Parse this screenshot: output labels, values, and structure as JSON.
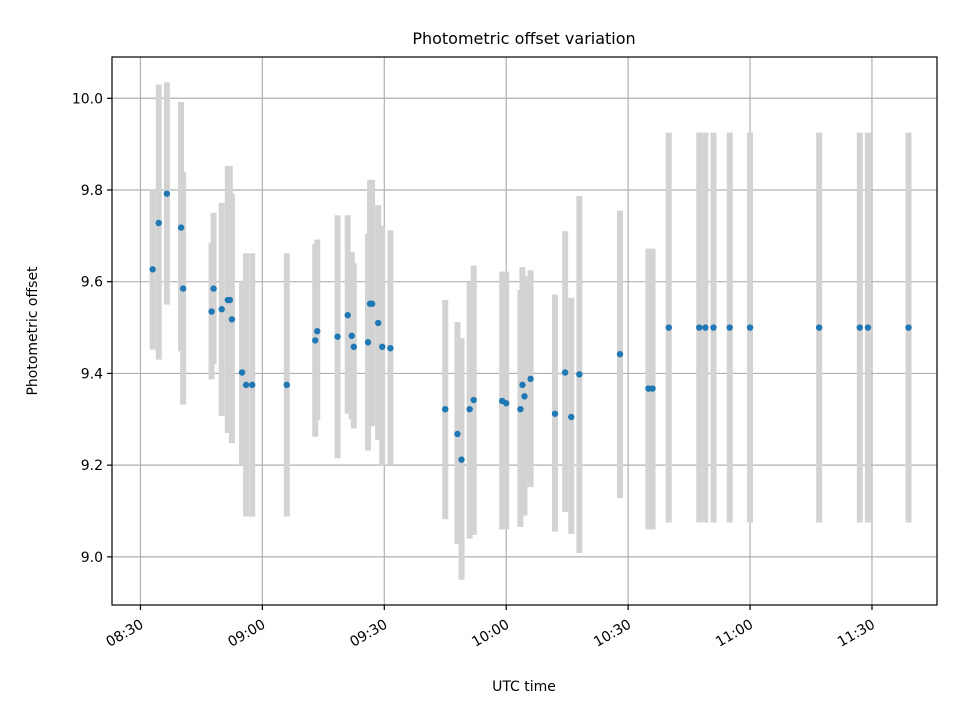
{
  "chart_data": {
    "type": "scatter",
    "title": "Photometric offset variation",
    "xlabel": "UTC time",
    "ylabel": "Photometric offset",
    "xlim": [
      "08:23",
      "11:46"
    ],
    "ylim": [
      8.895,
      10.09
    ],
    "x_ticks": [
      "08:30",
      "09:00",
      "09:30",
      "10:00",
      "10:30",
      "11:00",
      "11:30"
    ],
    "y_ticks": [
      "9.0",
      "9.2",
      "9.4",
      "9.6",
      "9.8",
      "10.0"
    ],
    "grid": true,
    "point_color": "#1f77b4",
    "errorbar_color": "#d3d3d3",
    "points": [
      {
        "x": "08:33",
        "y": 9.627,
        "lo": 9.452,
        "hi": 9.802
      },
      {
        "x": "08:34:30",
        "y": 9.728,
        "lo": 9.43,
        "hi": 10.03
      },
      {
        "x": "08:36:30",
        "y": 9.792,
        "lo": 9.55,
        "hi": 10.035
      },
      {
        "x": "08:40",
        "y": 9.718,
        "lo": 9.448,
        "hi": 9.992
      },
      {
        "x": "08:40:30",
        "y": 9.585,
        "lo": 9.332,
        "hi": 9.84
      },
      {
        "x": "08:47:30",
        "y": 9.535,
        "lo": 9.387,
        "hi": 9.685
      },
      {
        "x": "08:48",
        "y": 9.585,
        "lo": 9.42,
        "hi": 9.75
      },
      {
        "x": "08:50",
        "y": 9.54,
        "lo": 9.307,
        "hi": 9.772
      },
      {
        "x": "08:51:30",
        "y": 9.56,
        "lo": 9.27,
        "hi": 9.852
      },
      {
        "x": "08:52",
        "y": 9.56,
        "lo": 9.27,
        "hi": 9.852
      },
      {
        "x": "08:52:30",
        "y": 9.518,
        "lo": 9.248,
        "hi": 9.792
      },
      {
        "x": "08:55",
        "y": 9.402,
        "lo": 9.2,
        "hi": 9.602
      },
      {
        "x": "08:56",
        "y": 9.375,
        "lo": 9.088,
        "hi": 9.662
      },
      {
        "x": "08:57:30",
        "y": 9.375,
        "lo": 9.088,
        "hi": 9.662
      },
      {
        "x": "09:06",
        "y": 9.375,
        "lo": 9.088,
        "hi": 9.662
      },
      {
        "x": "09:13",
        "y": 9.472,
        "lo": 9.262,
        "hi": 9.682
      },
      {
        "x": "09:13:30",
        "y": 9.492,
        "lo": 9.298,
        "hi": 9.692
      },
      {
        "x": "09:18:30",
        "y": 9.48,
        "lo": 9.215,
        "hi": 9.745
      },
      {
        "x": "09:21",
        "y": 9.527,
        "lo": 9.312,
        "hi": 9.745
      },
      {
        "x": "09:22",
        "y": 9.482,
        "lo": 9.3,
        "hi": 9.665
      },
      {
        "x": "09:22:30",
        "y": 9.458,
        "lo": 9.28,
        "hi": 9.64
      },
      {
        "x": "09:26",
        "y": 9.468,
        "lo": 9.232,
        "hi": 9.705
      },
      {
        "x": "09:26:30",
        "y": 9.552,
        "lo": 9.285,
        "hi": 9.822
      },
      {
        "x": "09:27",
        "y": 9.552,
        "lo": 9.285,
        "hi": 9.822
      },
      {
        "x": "09:28:30",
        "y": 9.51,
        "lo": 9.255,
        "hi": 9.767
      },
      {
        "x": "09:29:30",
        "y": 9.458,
        "lo": 9.198,
        "hi": 9.722
      },
      {
        "x": "09:31:30",
        "y": 9.455,
        "lo": 9.2,
        "hi": 9.712
      },
      {
        "x": "09:45",
        "y": 9.322,
        "lo": 9.082,
        "hi": 9.56
      },
      {
        "x": "09:48",
        "y": 9.268,
        "lo": 9.028,
        "hi": 9.512
      },
      {
        "x": "09:49",
        "y": 9.212,
        "lo": 8.95,
        "hi": 9.477
      },
      {
        "x": "09:51",
        "y": 9.322,
        "lo": 9.04,
        "hi": 9.6
      },
      {
        "x": "09:52",
        "y": 9.342,
        "lo": 9.048,
        "hi": 9.635
      },
      {
        "x": "09:59",
        "y": 9.34,
        "lo": 9.06,
        "hi": 9.622
      },
      {
        "x": "10:00",
        "y": 9.335,
        "lo": 9.06,
        "hi": 9.622
      },
      {
        "x": "10:03:30",
        "y": 9.322,
        "lo": 9.065,
        "hi": 9.582
      },
      {
        "x": "10:04",
        "y": 9.375,
        "lo": 9.12,
        "hi": 9.632
      },
      {
        "x": "10:04:30",
        "y": 9.35,
        "lo": 9.09,
        "hi": 9.612
      },
      {
        "x": "10:06",
        "y": 9.388,
        "lo": 9.152,
        "hi": 9.625
      },
      {
        "x": "10:12",
        "y": 9.312,
        "lo": 9.055,
        "hi": 9.572
      },
      {
        "x": "10:14:30",
        "y": 9.402,
        "lo": 9.098,
        "hi": 9.71
      },
      {
        "x": "10:16",
        "y": 9.305,
        "lo": 9.05,
        "hi": 9.565
      },
      {
        "x": "10:18",
        "y": 9.398,
        "lo": 9.008,
        "hi": 9.787
      },
      {
        "x": "10:28",
        "y": 9.442,
        "lo": 9.128,
        "hi": 9.755
      },
      {
        "x": "10:35",
        "y": 9.367,
        "lo": 9.06,
        "hi": 9.672
      },
      {
        "x": "10:36",
        "y": 9.367,
        "lo": 9.06,
        "hi": 9.672
      },
      {
        "x": "10:40",
        "y": 9.5,
        "lo": 9.075,
        "hi": 9.925
      },
      {
        "x": "10:47:30",
        "y": 9.5,
        "lo": 9.075,
        "hi": 9.925
      },
      {
        "x": "10:49",
        "y": 9.5,
        "lo": 9.075,
        "hi": 9.925
      },
      {
        "x": "10:51",
        "y": 9.5,
        "lo": 9.075,
        "hi": 9.925
      },
      {
        "x": "10:55",
        "y": 9.5,
        "lo": 9.075,
        "hi": 9.925
      },
      {
        "x": "11:00",
        "y": 9.5,
        "lo": 9.075,
        "hi": 9.925
      },
      {
        "x": "11:17",
        "y": 9.5,
        "lo": 9.075,
        "hi": 9.925
      },
      {
        "x": "11:27",
        "y": 9.5,
        "lo": 9.075,
        "hi": 9.925
      },
      {
        "x": "11:29",
        "y": 9.5,
        "lo": 9.075,
        "hi": 9.925
      },
      {
        "x": "11:39",
        "y": 9.5,
        "lo": 9.075,
        "hi": 9.925
      }
    ]
  }
}
